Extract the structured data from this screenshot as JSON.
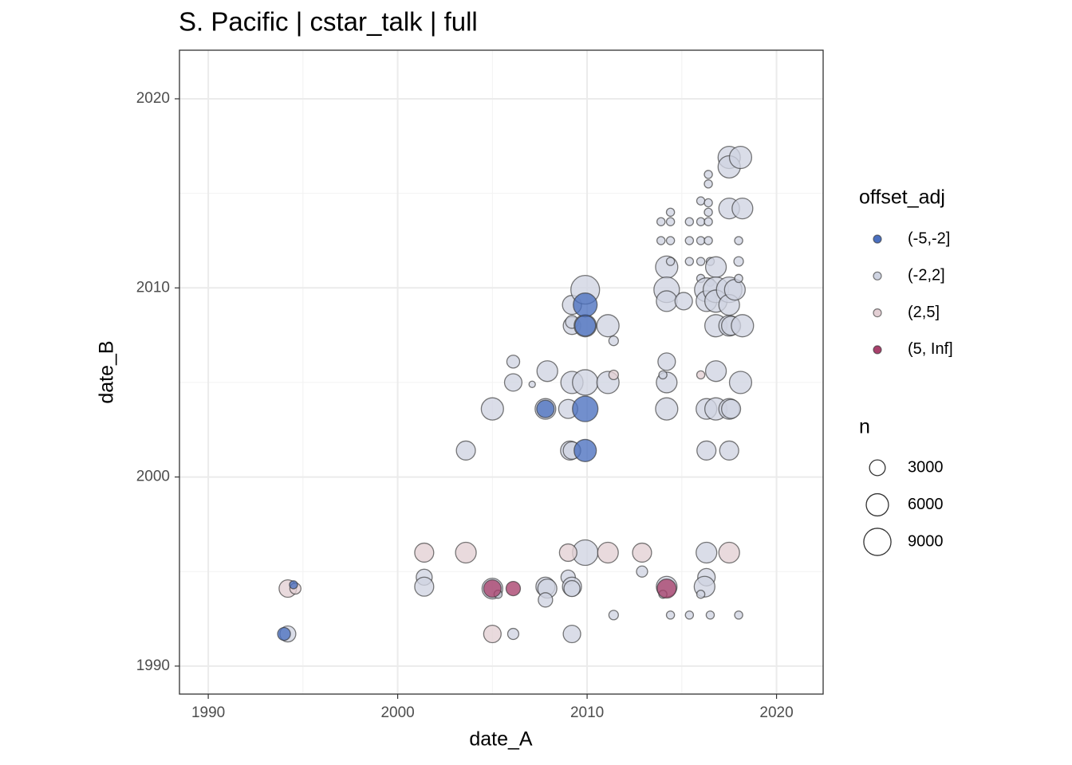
{
  "chart_data": {
    "type": "scatter",
    "title": "S. Pacific | cstar_talk | full",
    "x_label": "date_A",
    "y_label": "date_B",
    "xlim": [
      1988.48,
      2022.46
    ],
    "ylim": [
      1988.52,
      2022.57
    ],
    "xticks": [
      1990,
      2000,
      2010,
      2020
    ],
    "yticks": [
      1990,
      2000,
      2010,
      2020
    ],
    "grid": true,
    "legend_position": "right",
    "legend_title": "offset_adj",
    "size_legend": {
      "title": "n",
      "values": [
        3000,
        6000,
        9000
      ]
    },
    "series": [
      {
        "name": "(-5,-2]",
        "color": "#4a6fbf",
        "x": [
          1994.0,
          1994.5,
          2007.8,
          2009.9,
          2009.9,
          2009.9,
          2009.9
        ],
        "y": [
          1991.7,
          1994.3,
          2003.6,
          2003.6,
          2001.4,
          2009.1,
          2008.0
        ],
        "n": [
          2000,
          800,
          3700,
          7900,
          6000,
          6900,
          5200
        ]
      },
      {
        "name": "(-2,2]",
        "color": "#cfd4e2",
        "x": [
          1994.2,
          2001.4,
          2001.4,
          2005.0,
          2005.3,
          2006.1,
          2007.8,
          2007.9,
          2007.8,
          2009.0,
          2009.2,
          2009.2,
          2009.2,
          2009.9,
          2011.4,
          2012.9,
          2014.2,
          2014.0,
          2014.4,
          2015.4,
          2016.5,
          2018.0,
          2016.3,
          2016.3,
          2016.2,
          2016.0,
          2003.6,
          2005.0,
          2006.1,
          2006.1,
          2007.1,
          2007.9,
          2007.8,
          2009.0,
          2009.1,
          2009.2,
          2009.2,
          2009.9,
          2009.2,
          2009.2,
          2009.9,
          2011.1,
          2009.2,
          2009.9,
          2011.1,
          2011.4,
          2014.2,
          2014.2,
          2014.2,
          2014.0,
          2014.4,
          2013.9,
          2014.4,
          2013.9,
          2014.4,
          2014.2,
          2014.4,
          2014.2,
          2014.2,
          2015.1,
          2015.4,
          2015.4,
          2015.4,
          2016.0,
          2016.0,
          2016.0,
          2016.0,
          2016.0,
          2016.4,
          2016.4,
          2016.4,
          2016.4,
          2016.4,
          2016.4,
          2016.5,
          2016.8,
          2016.5,
          2016.3,
          2016.3,
          2016.8,
          2016.8,
          2016.8,
          2016.8,
          2016.3,
          2016.8,
          2017.5,
          2017.6,
          2016.3,
          2017.5,
          2017.5,
          2017.6,
          2017.5,
          2017.5,
          2017.8,
          2017.5,
          2017.5,
          2017.5,
          2018.1,
          2018.2,
          2018.0,
          2018.0,
          2018.0,
          2018.2,
          2018.1
        ],
        "y": [
          1991.7,
          1994.7,
          1994.2,
          1994.1,
          1993.8,
          1991.7,
          1994.2,
          1994.1,
          1993.5,
          1994.7,
          1994.2,
          1994.1,
          1991.7,
          1996.0,
          1992.7,
          1995.0,
          1994.2,
          1993.8,
          1992.7,
          1992.7,
          1992.7,
          1992.7,
          1996.0,
          1994.7,
          1994.2,
          1993.8,
          2001.4,
          2003.6,
          2005.0,
          2006.1,
          2004.9,
          2005.6,
          2003.6,
          2003.6,
          2001.4,
          2001.4,
          2009.1,
          2009.9,
          2008.0,
          2008.2,
          2008.0,
          2008.0,
          2005.0,
          2005.0,
          2005.0,
          2007.2,
          2003.6,
          2005.0,
          2006.1,
          2005.4,
          2014.0,
          2013.5,
          2013.5,
          2012.5,
          2012.5,
          2011.1,
          2011.4,
          2009.9,
          2009.3,
          2009.3,
          2013.5,
          2012.5,
          2011.4,
          2014.6,
          2013.5,
          2012.5,
          2011.4,
          2010.5,
          2016.0,
          2015.5,
          2014.5,
          2014.0,
          2013.5,
          2012.5,
          2011.4,
          2011.1,
          2010.3,
          2009.9,
          2009.3,
          2009.9,
          2009.3,
          2008.0,
          2005.6,
          2003.6,
          2003.6,
          2003.6,
          2003.6,
          2001.4,
          2001.4,
          2008.0,
          2008.0,
          2009.9,
          2009.1,
          2009.9,
          2016.9,
          2016.4,
          2014.2,
          2016.9,
          2014.2,
          2012.5,
          2011.4,
          2010.5,
          2008.0,
          2005.0
        ],
        "n": [
          3100,
          3100,
          4400,
          5200,
          800,
          1500,
          4400,
          4400,
          2500,
          2500,
          4400,
          3100,
          3700,
          7900,
          1100,
          1500,
          5200,
          800,
          800,
          800,
          800,
          800,
          5200,
          3700,
          5200,
          800,
          4400,
          6000,
          3700,
          2000,
          500,
          5200,
          5200,
          4400,
          4400,
          3700,
          4400,
          10000,
          3700,
          2000,
          6000,
          6000,
          6000,
          7900,
          6000,
          1100,
          6000,
          5200,
          3700,
          800,
          800,
          800,
          800,
          800,
          800,
          6000,
          800,
          7900,
          5200,
          3700,
          800,
          800,
          800,
          800,
          800,
          800,
          800,
          800,
          800,
          800,
          800,
          800,
          800,
          800,
          800,
          5200,
          800,
          6900,
          5200,
          7900,
          6000,
          6000,
          5200,
          5200,
          6000,
          5200,
          4400,
          4400,
          4400,
          5200,
          4400,
          7900,
          5200,
          5200,
          6000,
          6000,
          5200,
          6000,
          5200,
          800,
          1100,
          800,
          6000,
          6000
        ]
      },
      {
        "name": "(2,5]",
        "color": "#e3cfd4",
        "x": [
          1994.2,
          1994.6,
          2001.4,
          2003.6,
          2005.0,
          2009.0,
          2011.1,
          2012.9,
          2017.5,
          2011.4,
          2016.0
        ],
        "y": [
          1994.1,
          1994.1,
          1996.0,
          1996.0,
          1991.7,
          1996.0,
          1996.0,
          1996.0,
          1996.0,
          2005.4,
          2005.4
        ],
        "n": [
          3700,
          1500,
          4400,
          5200,
          3700,
          3700,
          5200,
          4400,
          5200,
          1100,
          800
        ]
      },
      {
        "name": "(5, Inf]",
        "color": "#a8406b",
        "x": [
          2005.0,
          2006.1,
          2014.2
        ],
        "y": [
          1994.1,
          1994.1,
          1994.1
        ],
        "n": [
          3700,
          2500,
          4400
        ]
      }
    ]
  }
}
